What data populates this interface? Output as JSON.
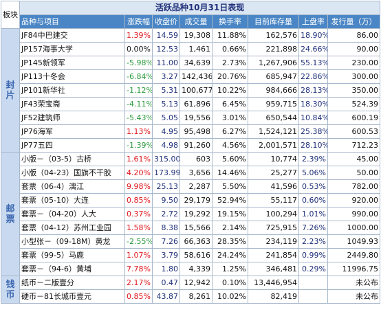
{
  "chart_data": {
    "type": "table",
    "title": "活跃品种10月31日表现",
    "corner_label": "板块",
    "columns": [
      "品种与项目",
      "涨跌幅",
      "收盘价",
      "成交量",
      "换手率",
      "目前库存量",
      "上盘率",
      "发行量（万）"
    ],
    "sections": [
      {
        "name": "封片",
        "rows": [
          {
            "name": "JF84中巴建交",
            "change": "1.39%",
            "dir": "up",
            "close": "14.59",
            "volume": "19,308",
            "turnover": "11.88%",
            "stock": "162,576",
            "listing": "18.90%",
            "issue": "86.00"
          },
          {
            "name": "JP157海事大学",
            "change": "0.00%",
            "dir": "flat",
            "close": "12.53",
            "volume": "1,461",
            "turnover": "0.66%",
            "stock": "221,898",
            "listing": "24.66%",
            "issue": "90.00"
          },
          {
            "name": "JP145新领军",
            "change": "-5.98%",
            "dir": "down",
            "close": "11.00",
            "volume": "34,639",
            "turnover": "2.73%",
            "stock": "1,267,906",
            "listing": "55.13%",
            "issue": "230.00"
          },
          {
            "name": "JP113十冬会",
            "change": "-6.84%",
            "dir": "down",
            "close": "3.27",
            "volume": "142,436",
            "turnover": "20.76%",
            "stock": "685,947",
            "listing": "22.86%",
            "issue": "300.00"
          },
          {
            "name": "JP101新华社",
            "change": "-1.12%",
            "dir": "down",
            "close": "5.31",
            "volume": "100,677",
            "turnover": "10.22%",
            "stock": "984,666",
            "listing": "28.13%",
            "issue": "350.00"
          },
          {
            "name": "JF43荣宝斋",
            "change": "-4.11%",
            "dir": "down",
            "close": "5.13",
            "volume": "61,896",
            "turnover": "6.45%",
            "stock": "959,715",
            "listing": "18.30%",
            "issue": "524.39"
          },
          {
            "name": "JF52建筑师",
            "change": "-5.43%",
            "dir": "down",
            "close": "5.05",
            "volume": "19,556",
            "turnover": "3.01%",
            "stock": "650,544",
            "listing": "10.84%",
            "issue": "600.19"
          },
          {
            "name": "JP76海军",
            "change": "1.13%",
            "dir": "up",
            "close": "4.95",
            "volume": "95,498",
            "turnover": "6.27%",
            "stock": "1,524,121",
            "listing": "25.38%",
            "issue": "600.53"
          },
          {
            "name": "JP77五四",
            "change": "-1.39%",
            "dir": "down",
            "close": "4.98",
            "volume": "91,260",
            "turnover": "4.56%",
            "stock": "2,001,571",
            "listing": "28.10%",
            "issue": "712.23"
          }
        ]
      },
      {
        "name": "邮票",
        "rows": [
          {
            "name": "小版－（03-5）古桥",
            "change": "1.61%",
            "dir": "up",
            "close": "315.00",
            "volume": "603",
            "turnover": "5.60%",
            "stock": "10,774",
            "listing": "2.39%",
            "issue": "45.00"
          },
          {
            "name": "小版（04-23）国旗不干胶",
            "change": "4.20%",
            "dir": "up",
            "close": "173.99",
            "volume": "3,656",
            "turnover": "14.46%",
            "stock": "25,277",
            "listing": "5.06%",
            "issue": "50.00"
          },
          {
            "name": "套票（06-4）漓江",
            "change": "9.98%",
            "dir": "up",
            "close": "25.13",
            "volume": "2,287",
            "turnover": "5.50%",
            "stock": "41,596",
            "listing": "0.53%",
            "issue": "782.00"
          },
          {
            "name": "套票（05-10）大连",
            "change": "0.85%",
            "dir": "up",
            "close": "9.50",
            "volume": "29,179",
            "turnover": "52.94%",
            "stock": "55,117",
            "listing": "0.60%",
            "issue": "920.00"
          },
          {
            "name": "套票－（04-20）人大",
            "change": "0.37%",
            "dir": "up",
            "close": "2.72",
            "volume": "19,292",
            "turnover": "19.15%",
            "stock": "100,294",
            "listing": "1.01%",
            "issue": "990.00"
          },
          {
            "name": "套票（04-12）苏州工业园",
            "change": "1.58%",
            "dir": "up",
            "close": "8.38",
            "volume": "15,566",
            "turnover": "2.14%",
            "stock": "725,915",
            "listing": "7.26%",
            "issue": "1000.00"
          },
          {
            "name": "小型张－（09-18M）黄龙",
            "change": "-2.55%",
            "dir": "down",
            "close": "7.26",
            "volume": "66,363",
            "turnover": "28.35%",
            "stock": "234,119",
            "listing": "2.23%",
            "issue": "1049.93"
          },
          {
            "name": "套票（99-5）马鹿",
            "change": "1.07%",
            "dir": "up",
            "close": "3.79",
            "volume": "58,616",
            "turnover": "24.24%",
            "stock": "241,854",
            "listing": "0.99%",
            "issue": "2449.80"
          },
          {
            "name": "套票－（94-6）黄埔",
            "change": "7.78%",
            "dir": "up",
            "close": "1.80",
            "volume": "4,339",
            "turnover": "1.25%",
            "stock": "346,481",
            "listing": "0.29%",
            "issue": "11996.75"
          }
        ]
      },
      {
        "name": "钱币",
        "rows": [
          {
            "name": "纸币－二版壹分",
            "change": "2.17%",
            "dir": "up",
            "close": "0.47",
            "volume": "12,942",
            "turnover": "0.10%",
            "stock": "13,446,954",
            "listing": "",
            "issue": "未公布"
          },
          {
            "name": "硬币－81长城币壹元",
            "change": "0.85%",
            "dir": "up",
            "close": "43.87",
            "volume": "8,261",
            "turnover": "10.02%",
            "stock": "82,419",
            "listing": "",
            "issue": "未公布"
          }
        ]
      }
    ]
  },
  "colors": {
    "up": "#e0151b",
    "down": "#2a9a3c",
    "flat": "#111111",
    "header_bg": "#4a86c5",
    "section_bg": "#c9daf0",
    "title_bg": "#dbe6f3"
  }
}
